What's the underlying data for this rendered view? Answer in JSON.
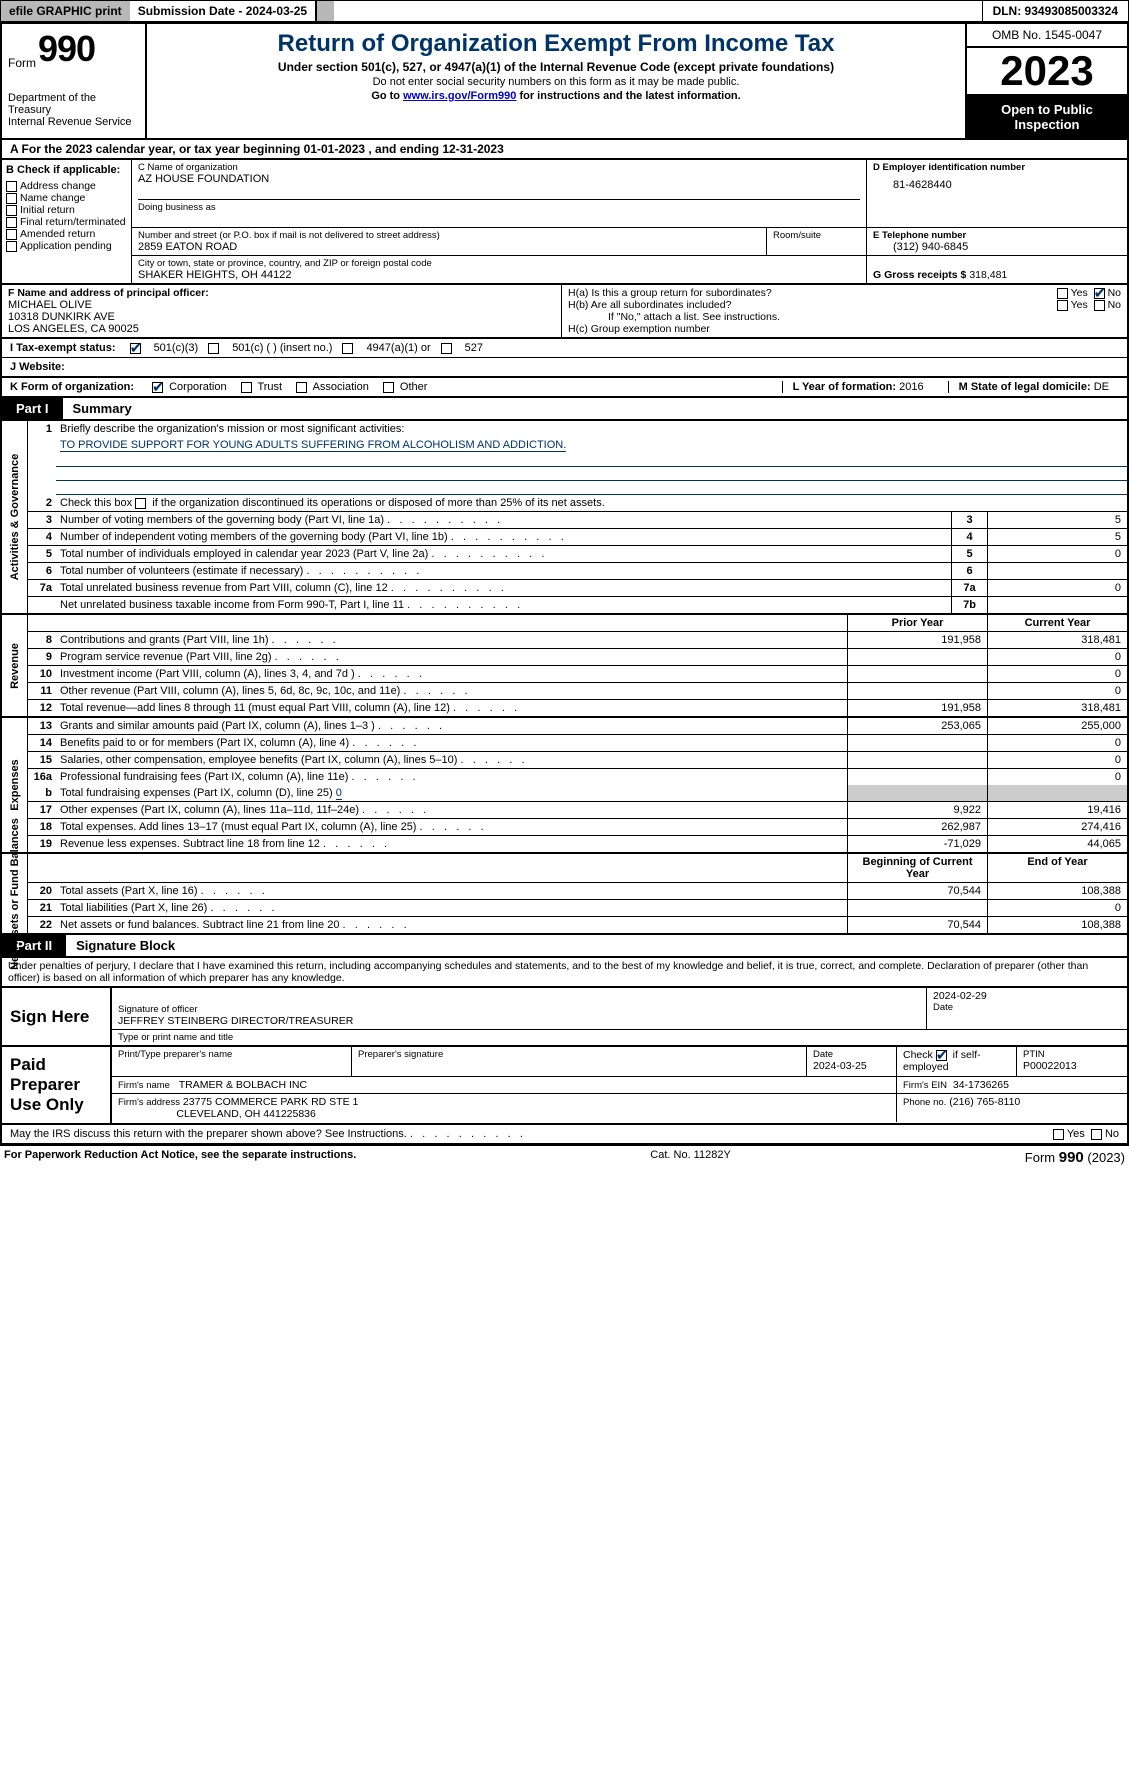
{
  "topbar": {
    "efile": "efile GRAPHIC print",
    "submission_label": "Submission Date - 2024-03-25",
    "dln_label": "DLN: 93493085003324"
  },
  "header": {
    "form_word": "Form",
    "form_num": "990",
    "dept": "Department of the Treasury\nInternal Revenue Service",
    "title": "Return of Organization Exempt From Income Tax",
    "subtitle": "Under section 501(c), 527, or 4947(a)(1) of the Internal Revenue Code (except private foundations)",
    "ssn_note": "Do not enter social security numbers on this form as it may be made public.",
    "goto_prefix": "Go to ",
    "goto_link": "www.irs.gov/Form990",
    "goto_suffix": " for instructions and the latest information.",
    "omb": "OMB No. 1545-0047",
    "year": "2023",
    "open": "Open to Public Inspection"
  },
  "sectionA": {
    "text": "A For the 2023 calendar year, or tax year beginning 01-01-2023   , and ending 12-31-2023"
  },
  "B": {
    "label": "B Check if applicable:",
    "opts": [
      "Address change",
      "Name change",
      "Initial return",
      "Final return/terminated",
      "Amended return",
      "Application pending"
    ]
  },
  "C": {
    "name_label": "C Name of organization",
    "name": "AZ HOUSE FOUNDATION",
    "dba_label": "Doing business as",
    "street_label": "Number and street (or P.O. box if mail is not delivered to street address)",
    "room_label": "Room/suite",
    "street": "2859 EATON ROAD",
    "city_label": "City or town, state or province, country, and ZIP or foreign postal code",
    "city": "SHAKER HEIGHTS, OH  44122"
  },
  "D": {
    "label": "D Employer identification number",
    "value": "81-4628440"
  },
  "E": {
    "label": "E Telephone number",
    "value": "(312) 940-6845"
  },
  "G": {
    "label": "G Gross receipts $",
    "value": "318,481"
  },
  "F": {
    "label": "F  Name and address of principal officer:",
    "line1": "MICHAEL OLIVE",
    "line2": "10318 DUNKIRK AVE",
    "line3": "LOS ANGELES, CA  90025"
  },
  "H": {
    "a": "H(a)  Is this a group return for subordinates?",
    "b": "H(b)  Are all subordinates included?",
    "b_note": "If \"No,\" attach a list. See instructions.",
    "c": "H(c)  Group exemption number",
    "yes": "Yes",
    "no": "No"
  },
  "I": {
    "label": "I   Tax-exempt status:",
    "o1": "501(c)(3)",
    "o2": "501(c) (  ) (insert no.)",
    "o3": "4947(a)(1) or",
    "o4": "527"
  },
  "J": {
    "label": "J   Website:"
  },
  "K": {
    "label": "K Form of organization:",
    "o1": "Corporation",
    "o2": "Trust",
    "o3": "Association",
    "o4": "Other"
  },
  "L": {
    "label": "L Year of formation:",
    "value": "2016"
  },
  "M": {
    "label": "M State of legal domicile:",
    "value": "DE"
  },
  "partI": {
    "name": "Part I",
    "title": "Summary",
    "side1": "Activities & Governance",
    "side2": "Revenue",
    "side3": "Expenses",
    "side4": "Net Assets or Fund Balances",
    "l1_label": "Briefly describe the organization's mission or most significant activities:",
    "l1_text": "TO PROVIDE SUPPORT FOR YOUNG ADULTS SUFFERING FROM ALCOHOLISM AND ADDICTION.",
    "l2": "Check this box        if the organization discontinued its operations or disposed of more than 25% of its net assets.",
    "lines_ag": [
      {
        "n": "3",
        "t": "Number of voting members of the governing body (Part VI, line 1a)",
        "box": "3",
        "v": "5"
      },
      {
        "n": "4",
        "t": "Number of independent voting members of the governing body (Part VI, line 1b)",
        "box": "4",
        "v": "5"
      },
      {
        "n": "5",
        "t": "Total number of individuals employed in calendar year 2023 (Part V, line 2a)",
        "box": "5",
        "v": "0"
      },
      {
        "n": "6",
        "t": "Total number of volunteers (estimate if necessary)",
        "box": "6",
        "v": ""
      },
      {
        "n": "7a",
        "t": "Total unrelated business revenue from Part VIII, column (C), line 12",
        "box": "7a",
        "v": "0"
      },
      {
        "n": "",
        "t": "Net unrelated business taxable income from Form 990-T, Part I, line 11",
        "box": "7b",
        "v": ""
      }
    ],
    "col_prior": "Prior Year",
    "col_curr": "Current Year",
    "lines_rev": [
      {
        "n": "8",
        "t": "Contributions and grants (Part VIII, line 1h)",
        "p": "191,958",
        "c": "318,481"
      },
      {
        "n": "9",
        "t": "Program service revenue (Part VIII, line 2g)",
        "p": "",
        "c": "0"
      },
      {
        "n": "10",
        "t": "Investment income (Part VIII, column (A), lines 3, 4, and 7d )",
        "p": "",
        "c": "0"
      },
      {
        "n": "11",
        "t": "Other revenue (Part VIII, column (A), lines 5, 6d, 8c, 9c, 10c, and 11e)",
        "p": "",
        "c": "0"
      },
      {
        "n": "12",
        "t": "Total revenue—add lines 8 through 11 (must equal Part VIII, column (A), line 12)",
        "p": "191,958",
        "c": "318,481"
      }
    ],
    "lines_exp": [
      {
        "n": "13",
        "t": "Grants and similar amounts paid (Part IX, column (A), lines 1–3 )",
        "p": "253,065",
        "c": "255,000"
      },
      {
        "n": "14",
        "t": "Benefits paid to or for members (Part IX, column (A), line 4)",
        "p": "",
        "c": "0"
      },
      {
        "n": "15",
        "t": "Salaries, other compensation, employee benefits (Part IX, column (A), lines 5–10)",
        "p": "",
        "c": "0"
      },
      {
        "n": "16a",
        "t": "Professional fundraising fees (Part IX, column (A), line 11e)",
        "p": "",
        "c": "0"
      }
    ],
    "l16b_label": "Total fundraising expenses (Part IX, column (D), line 25)",
    "l16b_val": "0",
    "lines_exp2": [
      {
        "n": "17",
        "t": "Other expenses (Part IX, column (A), lines 11a–11d, 11f–24e)",
        "p": "9,922",
        "c": "19,416"
      },
      {
        "n": "18",
        "t": "Total expenses. Add lines 13–17 (must equal Part IX, column (A), line 25)",
        "p": "262,987",
        "c": "274,416"
      },
      {
        "n": "19",
        "t": "Revenue less expenses. Subtract line 18 from line 12",
        "p": "-71,029",
        "c": "44,065"
      }
    ],
    "col_begin": "Beginning of Current Year",
    "col_end": "End of Year",
    "lines_na": [
      {
        "n": "20",
        "t": "Total assets (Part X, line 16)",
        "p": "70,544",
        "c": "108,388"
      },
      {
        "n": "21",
        "t": "Total liabilities (Part X, line 26)",
        "p": "",
        "c": "0"
      },
      {
        "n": "22",
        "t": "Net assets or fund balances. Subtract line 21 from line 20",
        "p": "70,544",
        "c": "108,388"
      }
    ]
  },
  "partII": {
    "name": "Part II",
    "title": "Signature Block",
    "decl": "Under penalties of perjury, I declare that I have examined this return, including accompanying schedules and statements, and to the best of my knowledge and belief, it is true, correct, and complete. Declaration of preparer (other than officer) is based on all information of which preparer has any knowledge.",
    "sign_here": "Sign Here",
    "sig_officer_label": "Signature of officer",
    "sig_date": "2024-02-29",
    "officer": "JEFFREY STEINBERG  DIRECTOR/TREASURER",
    "type_label": "Type or print name and title",
    "paid": "Paid Preparer Use Only",
    "prep_name_label": "Print/Type preparer's name",
    "prep_sig_label": "Preparer's signature",
    "date_label": "Date",
    "date_val": "2024-03-25",
    "check_if": "Check          if self-employed",
    "ptin_label": "PTIN",
    "ptin": "P00022013",
    "firm_name_label": "Firm's name",
    "firm_name": "TRAMER & BOLBACH INC",
    "firm_ein_label": "Firm's EIN",
    "firm_ein": "34-1736265",
    "firm_addr_label": "Firm's address",
    "firm_addr1": "23775 COMMERCE PARK RD STE 1",
    "firm_addr2": "CLEVELAND, OH  441225836",
    "phone_label": "Phone no.",
    "phone": "(216) 765-8110",
    "discuss": "May the IRS discuss this return with the preparer shown above? See Instructions.",
    "yes": "Yes",
    "no": "No"
  },
  "footer": {
    "pra": "For Paperwork Reduction Act Notice, see the separate instructions.",
    "cat": "Cat. No. 11282Y",
    "form": "Form",
    "formnum": "990",
    "formyr": "(2023)"
  },
  "colors": {
    "heading": "#003366",
    "link": "#0000cc",
    "gray_btn": "#b8b8b8",
    "gray_fill": "#cccccc"
  }
}
